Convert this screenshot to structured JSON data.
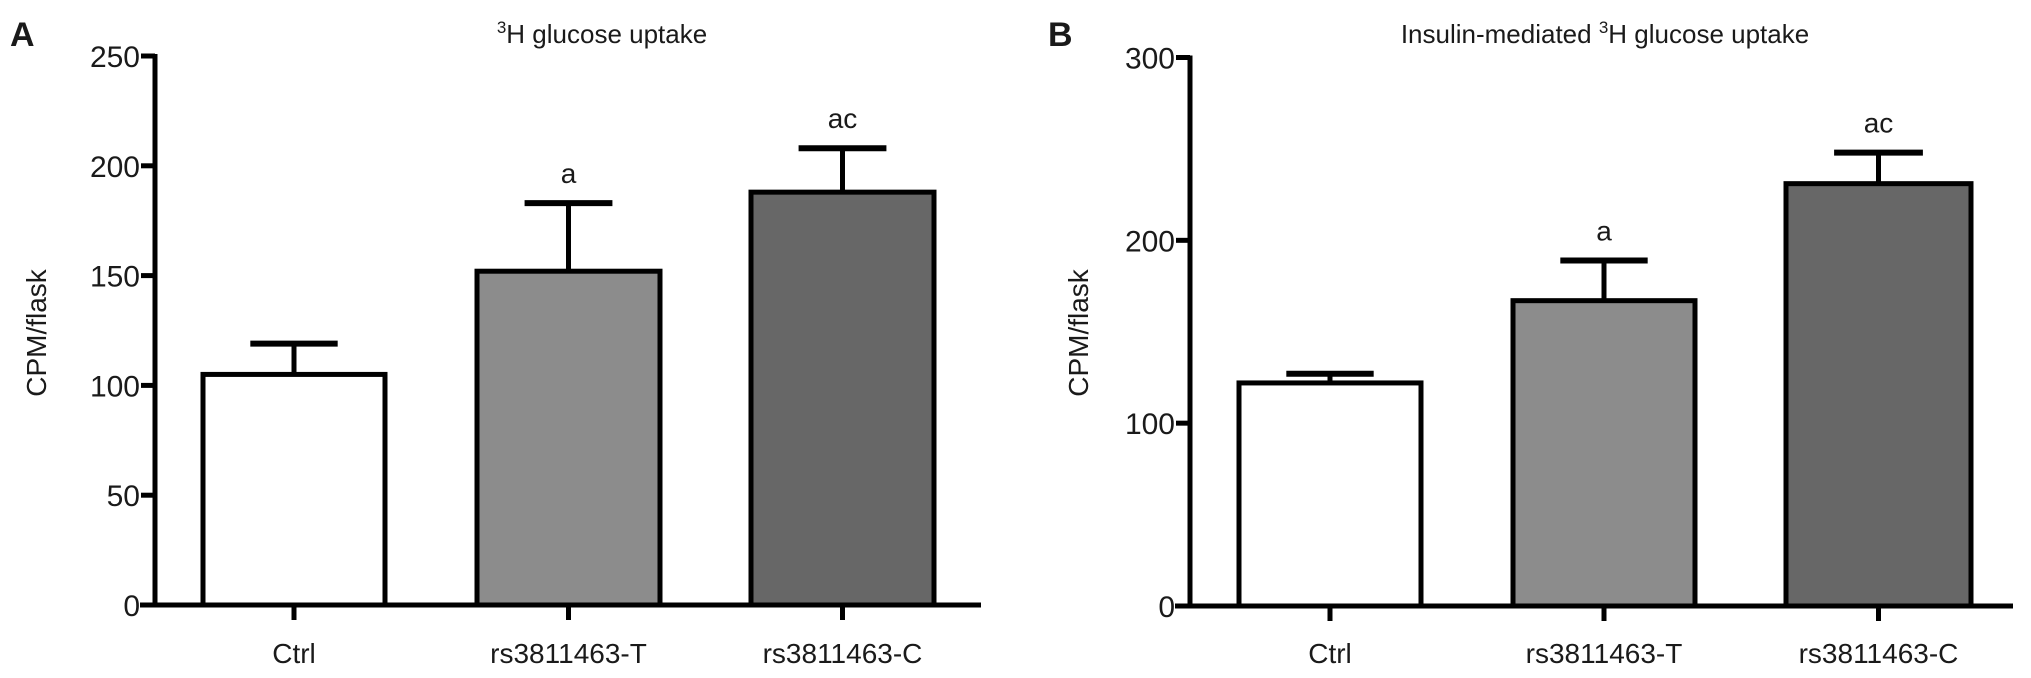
{
  "chart_data": [
    {
      "panel_label": "A",
      "type": "bar",
      "title_sup": "3",
      "title_pre": "",
      "title_post": "H glucose uptake",
      "xlabel": "",
      "ylabel": "CPM/flask",
      "ylim": [
        0,
        250
      ],
      "yticks": [
        0,
        50,
        100,
        150,
        200,
        250
      ],
      "categories": [
        "Ctrl",
        "rs3811463-T",
        "rs3811463-C"
      ],
      "values": [
        105,
        152,
        188
      ],
      "error_upper": [
        119,
        183,
        208
      ],
      "annotations": [
        "",
        "a",
        "ac"
      ],
      "colors": [
        "#ffffff",
        "#8c8c8c",
        "#676767"
      ],
      "grid": false
    },
    {
      "panel_label": "B",
      "type": "bar",
      "title_pre": "Insulin-mediated ",
      "title_sup": "3",
      "title_post": "H glucose uptake",
      "xlabel": "",
      "ylabel": "CPM/flask",
      "ylim": [
        0,
        300
      ],
      "yticks": [
        0,
        100,
        200,
        300
      ],
      "categories": [
        "Ctrl",
        "rs3811463-T",
        "rs3811463-C"
      ],
      "values": [
        122,
        167,
        231
      ],
      "error_upper": [
        127,
        189,
        248
      ],
      "annotations": [
        "",
        "a",
        "ac"
      ],
      "colors": [
        "#ffffff",
        "#8c8c8c",
        "#676767"
      ],
      "grid": false
    }
  ]
}
